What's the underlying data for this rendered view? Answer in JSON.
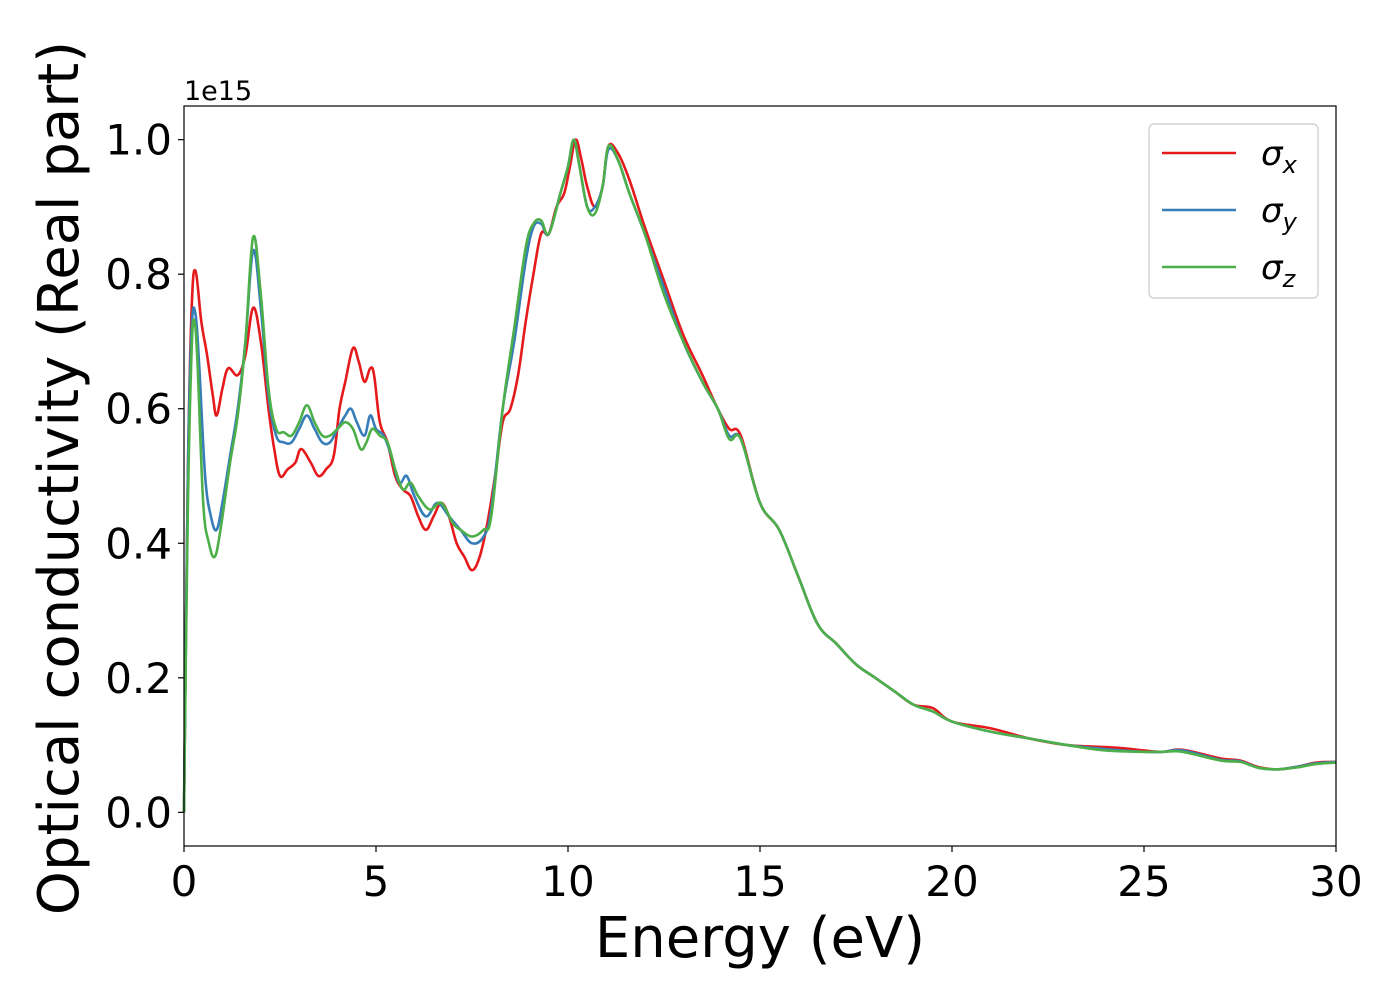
{
  "chart_data": {
    "type": "line",
    "xlabel": "Energy (eV)",
    "ylabel": "Optical conductivity (Real part)",
    "offset_text": "1e15",
    "xlim": [
      0,
      30
    ],
    "ylim": [
      -0.05,
      1.05
    ],
    "xticks": [
      0,
      5,
      10,
      15,
      20,
      25,
      30
    ],
    "xtick_labels": [
      "0",
      "5",
      "10",
      "15",
      "20",
      "25",
      "30"
    ],
    "yticks": [
      0.0,
      0.2,
      0.4,
      0.6,
      0.8,
      1.0
    ],
    "ytick_labels": [
      "0.0",
      "0.2",
      "0.4",
      "0.6",
      "0.8",
      "1.0"
    ],
    "grid": false,
    "legend_position": "top-right",
    "series": [
      {
        "name": "σx",
        "name_base": "σ",
        "name_sub": "x",
        "color": "#e41a1c",
        "points": [
          [
            0,
            0
          ],
          [
            0.1,
            0.5
          ],
          [
            0.2,
            0.75
          ],
          [
            0.3,
            0.805
          ],
          [
            0.45,
            0.73
          ],
          [
            0.6,
            0.68
          ],
          [
            0.75,
            0.62
          ],
          [
            0.85,
            0.59
          ],
          [
            1.0,
            0.63
          ],
          [
            1.15,
            0.66
          ],
          [
            1.4,
            0.65
          ],
          [
            1.6,
            0.68
          ],
          [
            1.8,
            0.75
          ],
          [
            2.0,
            0.7
          ],
          [
            2.2,
            0.6
          ],
          [
            2.35,
            0.54
          ],
          [
            2.5,
            0.5
          ],
          [
            2.7,
            0.51
          ],
          [
            2.9,
            0.52
          ],
          [
            3.05,
            0.54
          ],
          [
            3.3,
            0.52
          ],
          [
            3.5,
            0.5
          ],
          [
            3.7,
            0.51
          ],
          [
            3.9,
            0.53
          ],
          [
            4.05,
            0.6
          ],
          [
            4.2,
            0.64
          ],
          [
            4.4,
            0.69
          ],
          [
            4.55,
            0.67
          ],
          [
            4.7,
            0.64
          ],
          [
            4.85,
            0.66
          ],
          [
            4.95,
            0.65
          ],
          [
            5.1,
            0.58
          ],
          [
            5.3,
            0.55
          ],
          [
            5.5,
            0.5
          ],
          [
            5.7,
            0.48
          ],
          [
            5.9,
            0.47
          ],
          [
            6.1,
            0.44
          ],
          [
            6.3,
            0.42
          ],
          [
            6.5,
            0.44
          ],
          [
            6.7,
            0.46
          ],
          [
            6.9,
            0.44
          ],
          [
            7.1,
            0.4
          ],
          [
            7.3,
            0.38
          ],
          [
            7.5,
            0.36
          ],
          [
            7.7,
            0.38
          ],
          [
            7.9,
            0.43
          ],
          [
            8.1,
            0.5
          ],
          [
            8.3,
            0.58
          ],
          [
            8.5,
            0.6
          ],
          [
            8.7,
            0.65
          ],
          [
            8.9,
            0.73
          ],
          [
            9.1,
            0.8
          ],
          [
            9.3,
            0.86
          ],
          [
            9.5,
            0.86
          ],
          [
            9.7,
            0.9
          ],
          [
            9.9,
            0.92
          ],
          [
            10.05,
            0.96
          ],
          [
            10.2,
            1.0
          ],
          [
            10.35,
            0.97
          ],
          [
            10.5,
            0.93
          ],
          [
            10.7,
            0.9
          ],
          [
            10.9,
            0.93
          ],
          [
            11.05,
            0.99
          ],
          [
            11.3,
            0.98
          ],
          [
            11.6,
            0.94
          ],
          [
            12.0,
            0.87
          ],
          [
            12.5,
            0.79
          ],
          [
            13.0,
            0.71
          ],
          [
            13.5,
            0.65
          ],
          [
            13.9,
            0.6
          ],
          [
            14.2,
            0.57
          ],
          [
            14.5,
            0.56
          ],
          [
            15.0,
            0.46
          ],
          [
            15.5,
            0.42
          ],
          [
            16.0,
            0.35
          ],
          [
            16.5,
            0.28
          ],
          [
            17.0,
            0.25
          ],
          [
            17.5,
            0.22
          ],
          [
            18.0,
            0.2
          ],
          [
            18.5,
            0.18
          ],
          [
            19.0,
            0.16
          ],
          [
            19.5,
            0.155
          ],
          [
            20.0,
            0.135
          ],
          [
            21.0,
            0.125
          ],
          [
            22.0,
            0.11
          ],
          [
            23.0,
            0.1
          ],
          [
            24.0,
            0.097
          ],
          [
            24.5,
            0.095
          ],
          [
            25.0,
            0.092
          ],
          [
            25.5,
            0.09
          ],
          [
            26.0,
            0.093
          ],
          [
            27.0,
            0.08
          ],
          [
            27.5,
            0.077
          ],
          [
            28.0,
            0.067
          ],
          [
            28.5,
            0.064
          ],
          [
            29.0,
            0.068
          ],
          [
            29.5,
            0.074
          ],
          [
            30.0,
            0.075
          ]
        ]
      },
      {
        "name": "σy",
        "name_base": "σ",
        "name_sub": "y",
        "color": "#377eb8",
        "points": [
          [
            0,
            0
          ],
          [
            0.1,
            0.5
          ],
          [
            0.2,
            0.72
          ],
          [
            0.3,
            0.74
          ],
          [
            0.4,
            0.66
          ],
          [
            0.55,
            0.5
          ],
          [
            0.7,
            0.44
          ],
          [
            0.85,
            0.42
          ],
          [
            1.0,
            0.46
          ],
          [
            1.2,
            0.53
          ],
          [
            1.4,
            0.6
          ],
          [
            1.6,
            0.7
          ],
          [
            1.8,
            0.835
          ],
          [
            2.0,
            0.75
          ],
          [
            2.2,
            0.62
          ],
          [
            2.4,
            0.56
          ],
          [
            2.6,
            0.55
          ],
          [
            2.8,
            0.55
          ],
          [
            3.0,
            0.57
          ],
          [
            3.2,
            0.59
          ],
          [
            3.4,
            0.57
          ],
          [
            3.6,
            0.55
          ],
          [
            3.8,
            0.55
          ],
          [
            4.0,
            0.57
          ],
          [
            4.2,
            0.59
          ],
          [
            4.35,
            0.6
          ],
          [
            4.5,
            0.58
          ],
          [
            4.7,
            0.56
          ],
          [
            4.85,
            0.59
          ],
          [
            5.0,
            0.57
          ],
          [
            5.2,
            0.56
          ],
          [
            5.4,
            0.53
          ],
          [
            5.6,
            0.49
          ],
          [
            5.8,
            0.5
          ],
          [
            6.0,
            0.47
          ],
          [
            6.3,
            0.44
          ],
          [
            6.6,
            0.46
          ],
          [
            6.9,
            0.44
          ],
          [
            7.2,
            0.42
          ],
          [
            7.5,
            0.4
          ],
          [
            7.8,
            0.41
          ],
          [
            8.0,
            0.45
          ],
          [
            8.3,
            0.6
          ],
          [
            8.6,
            0.7
          ],
          [
            8.9,
            0.82
          ],
          [
            9.1,
            0.87
          ],
          [
            9.3,
            0.875
          ],
          [
            9.5,
            0.86
          ],
          [
            9.8,
            0.92
          ],
          [
            10.0,
            0.96
          ],
          [
            10.15,
            1.0
          ],
          [
            10.3,
            0.96
          ],
          [
            10.5,
            0.9
          ],
          [
            10.7,
            0.9
          ],
          [
            10.9,
            0.93
          ],
          [
            11.05,
            0.985
          ],
          [
            11.3,
            0.97
          ],
          [
            11.6,
            0.92
          ],
          [
            12.0,
            0.86
          ],
          [
            12.5,
            0.78
          ],
          [
            13.0,
            0.7
          ],
          [
            13.5,
            0.64
          ],
          [
            13.9,
            0.6
          ],
          [
            14.2,
            0.56
          ],
          [
            14.5,
            0.555
          ],
          [
            15.0,
            0.46
          ],
          [
            15.5,
            0.42
          ],
          [
            16.0,
            0.35
          ],
          [
            16.5,
            0.28
          ],
          [
            17.0,
            0.25
          ],
          [
            17.5,
            0.22
          ],
          [
            18.0,
            0.2
          ],
          [
            18.5,
            0.18
          ],
          [
            19.0,
            0.16
          ],
          [
            19.5,
            0.15
          ],
          [
            20.0,
            0.135
          ],
          [
            21.0,
            0.12
          ],
          [
            22.0,
            0.11
          ],
          [
            23.0,
            0.1
          ],
          [
            24.0,
            0.094
          ],
          [
            25.0,
            0.09
          ],
          [
            25.5,
            0.09
          ],
          [
            26.0,
            0.092
          ],
          [
            27.0,
            0.078
          ],
          [
            27.5,
            0.076
          ],
          [
            28.0,
            0.066
          ],
          [
            28.5,
            0.064
          ],
          [
            29.0,
            0.068
          ],
          [
            29.5,
            0.073
          ],
          [
            30.0,
            0.075
          ]
        ]
      },
      {
        "name": "σz",
        "name_base": "σ",
        "name_sub": "z",
        "color": "#4daf4a",
        "points": [
          [
            0,
            0
          ],
          [
            0.1,
            0.45
          ],
          [
            0.2,
            0.69
          ],
          [
            0.27,
            0.73
          ],
          [
            0.35,
            0.67
          ],
          [
            0.5,
            0.46
          ],
          [
            0.65,
            0.4
          ],
          [
            0.8,
            0.38
          ],
          [
            0.95,
            0.42
          ],
          [
            1.2,
            0.52
          ],
          [
            1.4,
            0.59
          ],
          [
            1.6,
            0.7
          ],
          [
            1.8,
            0.855
          ],
          [
            2.0,
            0.77
          ],
          [
            2.2,
            0.63
          ],
          [
            2.4,
            0.57
          ],
          [
            2.6,
            0.565
          ],
          [
            2.8,
            0.56
          ],
          [
            3.0,
            0.58
          ],
          [
            3.2,
            0.605
          ],
          [
            3.4,
            0.58
          ],
          [
            3.6,
            0.56
          ],
          [
            3.8,
            0.56
          ],
          [
            4.0,
            0.57
          ],
          [
            4.2,
            0.58
          ],
          [
            4.4,
            0.57
          ],
          [
            4.6,
            0.54
          ],
          [
            4.75,
            0.55
          ],
          [
            4.9,
            0.57
          ],
          [
            5.1,
            0.56
          ],
          [
            5.3,
            0.55
          ],
          [
            5.5,
            0.51
          ],
          [
            5.7,
            0.48
          ],
          [
            5.9,
            0.49
          ],
          [
            6.1,
            0.47
          ],
          [
            6.4,
            0.45
          ],
          [
            6.7,
            0.46
          ],
          [
            7.0,
            0.43
          ],
          [
            7.2,
            0.42
          ],
          [
            7.5,
            0.41
          ],
          [
            7.8,
            0.42
          ],
          [
            8.0,
            0.44
          ],
          [
            8.3,
            0.6
          ],
          [
            8.6,
            0.72
          ],
          [
            8.9,
            0.84
          ],
          [
            9.1,
            0.875
          ],
          [
            9.3,
            0.88
          ],
          [
            9.5,
            0.86
          ],
          [
            9.8,
            0.92
          ],
          [
            10.0,
            0.96
          ],
          [
            10.15,
            1.0
          ],
          [
            10.3,
            0.96
          ],
          [
            10.5,
            0.9
          ],
          [
            10.7,
            0.89
          ],
          [
            10.9,
            0.93
          ],
          [
            11.05,
            0.99
          ],
          [
            11.3,
            0.97
          ],
          [
            11.6,
            0.92
          ],
          [
            12.0,
            0.86
          ],
          [
            12.5,
            0.77
          ],
          [
            13.0,
            0.7
          ],
          [
            13.5,
            0.64
          ],
          [
            13.9,
            0.6
          ],
          [
            14.2,
            0.555
          ],
          [
            14.5,
            0.555
          ],
          [
            15.0,
            0.46
          ],
          [
            15.5,
            0.42
          ],
          [
            16.0,
            0.35
          ],
          [
            16.5,
            0.28
          ],
          [
            17.0,
            0.25
          ],
          [
            17.5,
            0.22
          ],
          [
            18.0,
            0.2
          ],
          [
            18.5,
            0.18
          ],
          [
            19.0,
            0.16
          ],
          [
            19.5,
            0.15
          ],
          [
            20.0,
            0.135
          ],
          [
            21.0,
            0.12
          ],
          [
            22.0,
            0.11
          ],
          [
            23.0,
            0.1
          ],
          [
            24.0,
            0.092
          ],
          [
            25.0,
            0.09
          ],
          [
            25.5,
            0.09
          ],
          [
            26.0,
            0.09
          ],
          [
            27.0,
            0.077
          ],
          [
            27.5,
            0.075
          ],
          [
            28.0,
            0.066
          ],
          [
            28.5,
            0.064
          ],
          [
            29.0,
            0.067
          ],
          [
            29.5,
            0.072
          ],
          [
            30.0,
            0.074
          ]
        ]
      }
    ]
  }
}
